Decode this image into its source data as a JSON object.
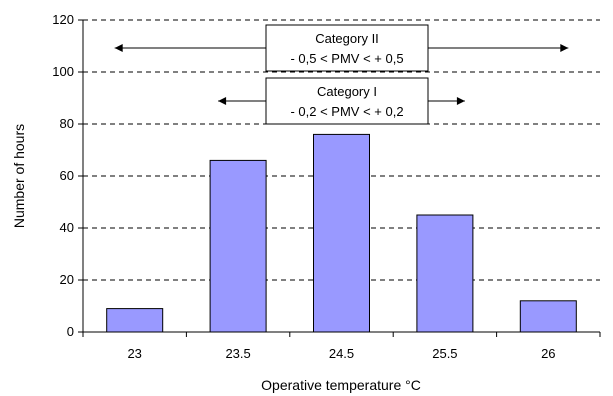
{
  "chart_data": {
    "type": "bar",
    "categories": [
      "23",
      "23.5",
      "24.5",
      "25.5",
      "26"
    ],
    "values": [
      9,
      66,
      76,
      45,
      12
    ],
    "xlabel": "Operative temperature °C",
    "ylabel": "Number of  hours",
    "ylim": [
      0,
      120
    ],
    "yticks": [
      "0",
      "20",
      "40",
      "60",
      "80",
      "100",
      "120"
    ],
    "grid": "dashed horizontal",
    "bar_color": "#9999ff",
    "annotations": [
      {
        "line1": "Category II",
        "line2": "- 0,5  < PMV < + 0,5",
        "from": "23",
        "to": "26"
      },
      {
        "line1": "Category I",
        "line2": "- 0,2  < PMV < + 0,2",
        "from": "23.5",
        "to": "25.5"
      }
    ]
  }
}
